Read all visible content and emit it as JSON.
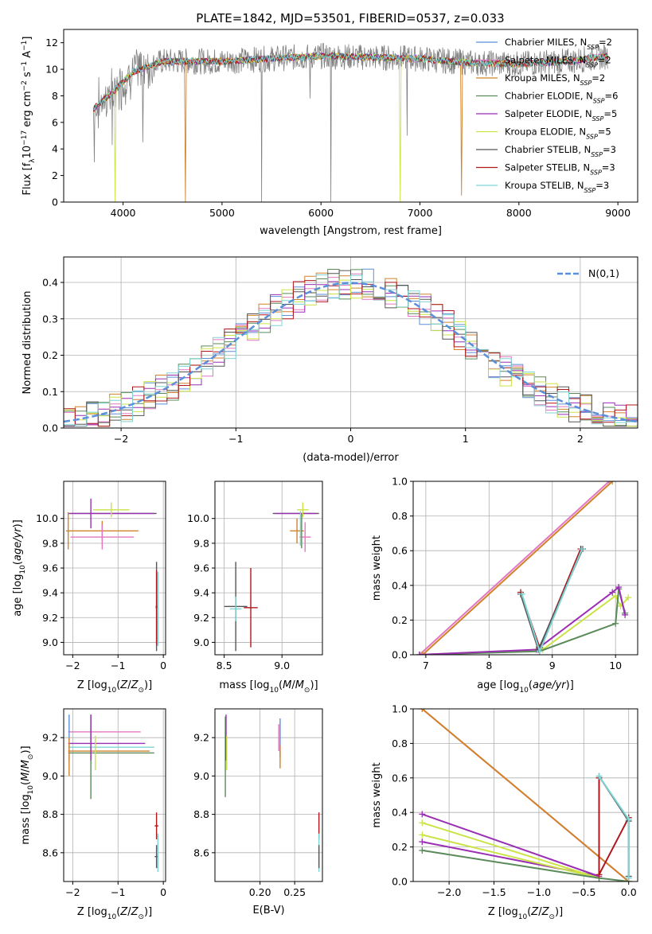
{
  "page": {
    "title": "PLATE=1842, MJD=53501, FIBERID=0537, z=0.033"
  },
  "legend_models": [
    {
      "name": "Chabrier MILES, N_SSP=2",
      "color": "#5b8fd9"
    },
    {
      "name": "Salpeter MILES, N_SSP=2",
      "color": "#e377c2"
    },
    {
      "name": "Kroupa MILES, N_SSP=2",
      "color": "#d2822a"
    },
    {
      "name": "Chabrier ELODIE, N_SSP=6",
      "color": "#5a8a5a"
    },
    {
      "name": "Salpeter ELODIE, N_SSP=5",
      "color": "#9a2fb3"
    },
    {
      "name": "Kroupa ELODIE, N_SSP=5",
      "color": "#cbe346"
    },
    {
      "name": "Chabrier STELIB, N_SSP=3",
      "color": "#555555"
    },
    {
      "name": "Salpeter STELIB, N_SSP=3",
      "color": "#b0171d"
    },
    {
      "name": "Kroupa STELIB, N_SSP=3",
      "color": "#7ed4d4"
    }
  ],
  "chart_data": [
    {
      "id": "spectrum",
      "type": "line",
      "title": "PLATE=1842, MJD=53501, FIBERID=0537, z=0.033",
      "xlabel": "wavelength [Angstrom, rest frame]",
      "ylabel": "Flux [f_λ 10^-17 erg cm^-2 s^-1 A^-1]",
      "xlim": [
        3400,
        9200
      ],
      "ylim": [
        0,
        13
      ],
      "xticks": [
        4000,
        5000,
        6000,
        7000,
        8000,
        9000
      ],
      "yticks": [
        0,
        2,
        4,
        6,
        8,
        10,
        12
      ],
      "data_color": "#808080",
      "data_x_range": [
        3700,
        8900
      ],
      "spikes_down": [
        {
          "x": 3710,
          "y": 3.0
        },
        {
          "x": 3890,
          "y": 4.3
        },
        {
          "x": 4200,
          "y": 4.5
        },
        {
          "x": 5400,
          "y": 0.0
        },
        {
          "x": 5890,
          "y": 7.8
        },
        {
          "x": 6100,
          "y": 0.0
        },
        {
          "x": 6870,
          "y": 5.0
        },
        {
          "x": 7600,
          "y": 10.5
        }
      ],
      "model_dropouts": [
        {
          "x": 3920,
          "y": 0.0,
          "model": "Kroupa ELODIE, N_SSP=5"
        },
        {
          "x": 4630,
          "y": 0.0,
          "model": "Kroupa MILES, N_SSP=2"
        },
        {
          "x": 6800,
          "y": 0.0,
          "model": "Kroupa ELODIE, N_SSP=5"
        },
        {
          "x": 7420,
          "y": 0.5,
          "model": "Kroupa MILES, N_SSP=2"
        }
      ],
      "continuum": [
        [
          3700,
          7.0
        ],
        [
          3900,
          8.3
        ],
        [
          4100,
          9.8
        ],
        [
          4400,
          10.6
        ],
        [
          5000,
          10.6
        ],
        [
          6000,
          11.0
        ],
        [
          7000,
          10.8
        ],
        [
          7500,
          10.5
        ],
        [
          8000,
          10.4
        ],
        [
          8500,
          10.6
        ],
        [
          8900,
          11.0
        ]
      ]
    },
    {
      "id": "residuals",
      "type": "line",
      "xlabel": "(data-model)/error",
      "ylabel": "Normed distribution",
      "xlim": [
        -2.5,
        2.5
      ],
      "ylim": [
        0,
        0.47
      ],
      "xticks": [
        -2,
        -1,
        0,
        1,
        2
      ],
      "yticks": [
        0.0,
        0.1,
        0.2,
        0.3,
        0.4
      ],
      "normal_curve_label": "N(0,1)",
      "normal_curve_color": "#5b8fd9",
      "step_bin_width": 0.1
    },
    {
      "id": "age_vs_metallicity",
      "type": "scatter",
      "xlabel": "Z [log10(Z/Z⊙)]",
      "ylabel": "age  [log10(age/yr)]",
      "xlim": [
        -2.2,
        0.05
      ],
      "ylim": [
        8.9,
        10.3
      ],
      "xticks": [
        -2,
        -1,
        0
      ],
      "yticks": [
        9.0,
        9.2,
        9.4,
        9.6,
        9.8,
        10.0
      ],
      "points": [
        {
          "x": -1.1,
          "y": 10.04,
          "xerr": 0.95,
          "yerr": 0.0,
          "color": "#555555"
        },
        {
          "x": -1.15,
          "y": 10.04,
          "xerr": 0.95,
          "yerr": 0.0,
          "color": "#9a2fb3"
        },
        {
          "x": -1.15,
          "y": 10.07,
          "xerr": 0.4,
          "yerr": 0.06,
          "color": "#cbe346"
        },
        {
          "x": -1.35,
          "y": 9.9,
          "xerr": 0.8,
          "yerr": 0.08,
          "color": "#d2822a"
        },
        {
          "x": -1.35,
          "y": 9.85,
          "xerr": 0.7,
          "yerr": 0.1,
          "color": "#e377c2"
        },
        {
          "x": -1.6,
          "y": 10.04,
          "xerr": 0.0,
          "yerr": 0.12,
          "color": "#9a2fb3"
        },
        {
          "x": -2.1,
          "y": 9.9,
          "xerr": 0.0,
          "yerr": 0.15,
          "color": "#d2822a"
        },
        {
          "x": -0.15,
          "y": 9.29,
          "xerr": 0.02,
          "yerr": 0.36,
          "color": "#555555"
        },
        {
          "x": -0.15,
          "y": 9.28,
          "xerr": 0.02,
          "yerr": 0.3,
          "color": "#b0171d"
        },
        {
          "x": -0.12,
          "y": 9.27,
          "xerr": 0.02,
          "yerr": 0.3,
          "color": "#7ed4d4"
        }
      ]
    },
    {
      "id": "age_vs_mass",
      "type": "scatter",
      "xlabel": "mass [log10(M/M⊙)]",
      "ylabel": "",
      "xlim": [
        8.42,
        9.35
      ],
      "ylim": [
        8.9,
        10.3
      ],
      "xticks": [
        8.5,
        9.0
      ],
      "yticks": [
        9.0,
        9.2,
        9.4,
        9.6,
        9.8,
        10.0
      ],
      "points": [
        {
          "x": 9.12,
          "y": 10.04,
          "xerr": 0.2,
          "yerr": 0.0,
          "color": "#555555"
        },
        {
          "x": 9.12,
          "y": 10.04,
          "xerr": 0.18,
          "yerr": 0.0,
          "color": "#9a2fb3"
        },
        {
          "x": 9.18,
          "y": 10.07,
          "xerr": 0.05,
          "yerr": 0.06,
          "color": "#cbe346"
        },
        {
          "x": 9.13,
          "y": 9.9,
          "xerr": 0.06,
          "yerr": 0.1,
          "color": "#d2822a"
        },
        {
          "x": 9.2,
          "y": 9.85,
          "xerr": 0.05,
          "yerr": 0.12,
          "color": "#e377c2"
        },
        {
          "x": 9.17,
          "y": 9.9,
          "xerr": 0.0,
          "yerr": 0.14,
          "color": "#5a8a5a"
        },
        {
          "x": 9.16,
          "y": 9.92,
          "xerr": 0.0,
          "yerr": 0.14,
          "color": "#7ed4d4"
        },
        {
          "x": 8.6,
          "y": 9.29,
          "xerr": 0.1,
          "yerr": 0.36,
          "color": "#555555"
        },
        {
          "x": 8.6,
          "y": 9.27,
          "xerr": 0.05,
          "yerr": 0.1,
          "color": "#7ed4d4"
        },
        {
          "x": 8.73,
          "y": 9.28,
          "xerr": 0.06,
          "yerr": 0.32,
          "color": "#b0171d"
        }
      ]
    },
    {
      "id": "mass_weight_vs_age",
      "type": "line",
      "xlabel": "age  [log10(age/yr)]",
      "ylabel": "mass weight",
      "xlim": [
        6.8,
        10.35
      ],
      "ylim": [
        0,
        1.0
      ],
      "xticks": [
        7,
        8,
        9,
        10
      ],
      "yticks": [
        0.0,
        0.2,
        0.4,
        0.6,
        0.8,
        1.0
      ],
      "series": [
        {
          "color": "#e377c2",
          "points": [
            [
              6.9,
              0.0
            ],
            [
              9.9,
              1.0
            ]
          ]
        },
        {
          "color": "#d2822a",
          "points": [
            [
              6.95,
              0.0
            ],
            [
              9.95,
              1.0
            ]
          ]
        },
        {
          "color": "#cbe346",
          "points": [
            [
              6.9,
              0.0
            ],
            [
              8.85,
              0.03
            ],
            [
              10.0,
              0.34
            ],
            [
              10.08,
              0.28
            ],
            [
              10.2,
              0.33
            ]
          ]
        },
        {
          "color": "#5a8a5a",
          "points": [
            [
              6.9,
              0.0
            ],
            [
              8.8,
              0.02
            ],
            [
              10.0,
              0.18
            ],
            [
              10.05,
              0.38
            ],
            [
              10.15,
              0.24
            ]
          ]
        },
        {
          "color": "#9a2fb3",
          "points": [
            [
              6.9,
              0.0
            ],
            [
              8.75,
              0.03
            ],
            [
              9.95,
              0.36
            ],
            [
              10.05,
              0.39
            ],
            [
              10.15,
              0.23
            ]
          ]
        },
        {
          "color": "#b0171d",
          "points": [
            [
              8.5,
              0.36
            ],
            [
              8.8,
              0.04
            ],
            [
              9.45,
              0.61
            ]
          ]
        },
        {
          "color": "#555555",
          "points": [
            [
              8.5,
              0.35
            ],
            [
              8.78,
              0.03
            ],
            [
              9.48,
              0.61
            ]
          ]
        },
        {
          "color": "#7ed4d4",
          "points": [
            [
              8.52,
              0.35
            ],
            [
              8.8,
              0.02
            ],
            [
              9.47,
              0.61
            ]
          ]
        }
      ]
    },
    {
      "id": "mass_vs_metallicity",
      "type": "scatter",
      "xlabel": "Z [log10(Z/Z⊙)]",
      "ylabel": "mass [log10(M/M⊙)]",
      "xlim": [
        -2.2,
        0.05
      ],
      "ylim": [
        8.45,
        9.35
      ],
      "xticks": [
        -2,
        -1,
        0
      ],
      "yticks": [
        8.6,
        8.8,
        9.0,
        9.2
      ],
      "points": [
        {
          "x": -1.3,
          "y": 9.23,
          "xerr": 0.8,
          "yerr": 0.0,
          "color": "#e377c2"
        },
        {
          "x": -1.25,
          "y": 9.17,
          "xerr": 0.85,
          "yerr": 0.0,
          "color": "#9a2fb3"
        },
        {
          "x": -1.15,
          "y": 9.15,
          "xerr": 0.95,
          "yerr": 0.0,
          "color": "#7ed4d4"
        },
        {
          "x": -1.2,
          "y": 9.13,
          "xerr": 0.9,
          "yerr": 0.0,
          "color": "#d2822a"
        },
        {
          "x": -1.15,
          "y": 9.12,
          "xerr": 0.95,
          "yerr": 0.0,
          "color": "#5a8a5a"
        },
        {
          "x": -1.5,
          "y": 9.12,
          "xerr": 0.0,
          "yerr": 0.09,
          "color": "#cbe346"
        },
        {
          "x": -1.6,
          "y": 9.1,
          "xerr": 0.0,
          "yerr": 0.22,
          "color": "#5a8a5a"
        },
        {
          "x": -1.6,
          "y": 9.2,
          "xerr": 0.0,
          "yerr": 0.12,
          "color": "#9a2fb3"
        },
        {
          "x": -2.08,
          "y": 9.2,
          "xerr": 0.0,
          "yerr": 0.12,
          "color": "#5b8fd9"
        },
        {
          "x": -2.08,
          "y": 9.1,
          "xerr": 0.0,
          "yerr": 0.1,
          "color": "#d2822a"
        },
        {
          "x": -0.15,
          "y": 8.74,
          "xerr": 0.04,
          "yerr": 0.07,
          "color": "#b0171d"
        },
        {
          "x": -0.15,
          "y": 8.58,
          "xerr": 0.04,
          "yerr": 0.06,
          "color": "#555555"
        },
        {
          "x": -0.12,
          "y": 8.6,
          "xerr": 0.02,
          "yerr": 0.1,
          "color": "#7ed4d4"
        }
      ]
    },
    {
      "id": "mass_vs_ebv",
      "type": "scatter",
      "xlabel": "E(B-V)",
      "ylabel": "",
      "xlim": [
        0.135,
        0.29
      ],
      "ylim": [
        8.45,
        9.35
      ],
      "xticks": [
        0.2,
        0.25
      ],
      "yticks": [
        8.6,
        8.8,
        9.0,
        9.2
      ],
      "points": [
        {
          "x": 0.15,
          "y": 9.1,
          "xerr": 0.0,
          "yerr": 0.21,
          "color": "#5a8a5a"
        },
        {
          "x": 0.151,
          "y": 9.2,
          "xerr": 0.0,
          "yerr": 0.12,
          "color": "#9a2fb3"
        },
        {
          "x": 0.152,
          "y": 9.12,
          "xerr": 0.0,
          "yerr": 0.09,
          "color": "#cbe346"
        },
        {
          "x": 0.227,
          "y": 9.2,
          "xerr": 0.0,
          "yerr": 0.07,
          "color": "#e377c2"
        },
        {
          "x": 0.229,
          "y": 9.2,
          "xerr": 0.0,
          "yerr": 0.1,
          "color": "#5b8fd9"
        },
        {
          "x": 0.229,
          "y": 9.1,
          "xerr": 0.0,
          "yerr": 0.06,
          "color": "#d2822a"
        },
        {
          "x": 0.285,
          "y": 8.74,
          "xerr": 0.0,
          "yerr": 0.07,
          "color": "#b0171d"
        },
        {
          "x": 0.285,
          "y": 8.6,
          "xerr": 0.0,
          "yerr": 0.1,
          "color": "#7ed4d4"
        },
        {
          "x": 0.285,
          "y": 8.58,
          "xerr": 0.0,
          "yerr": 0.06,
          "color": "#555555"
        }
      ]
    },
    {
      "id": "mass_weight_vs_metallicity",
      "type": "line",
      "xlabel": "Z [log10(Z/Z⊙)]",
      "ylabel": "mass weight",
      "xlim": [
        -2.4,
        0.1
      ],
      "ylim": [
        0,
        1.0
      ],
      "xticks": [
        -2.0,
        -1.5,
        -1.0,
        -0.5,
        0.0
      ],
      "yticks": [
        0.0,
        0.2,
        0.4,
        0.6,
        0.8,
        1.0
      ],
      "series": [
        {
          "color": "#e377c2",
          "points": [
            [
              -2.3,
              1.0
            ],
            [
              0.0,
              0.0
            ]
          ]
        },
        {
          "color": "#d2822a",
          "points": [
            [
              -2.3,
              1.0
            ],
            [
              0.0,
              0.0
            ]
          ]
        },
        {
          "color": "#9a2fb3",
          "points": [
            [
              -2.3,
              0.39
            ],
            [
              -0.33,
              0.03
            ],
            [
              -2.3,
              0.23
            ]
          ]
        },
        {
          "color": "#cbe346",
          "points": [
            [
              -2.3,
              0.27
            ],
            [
              -0.33,
              0.02
            ],
            [
              -2.3,
              0.34
            ]
          ]
        },
        {
          "color": "#5a8a5a",
          "points": [
            [
              -2.3,
              0.18
            ],
            [
              -0.33,
              0.02
            ],
            [
              0.0,
              0.0
            ]
          ]
        },
        {
          "color": "#b0171d",
          "points": [
            [
              -0.33,
              0.6
            ],
            [
              -0.33,
              0.04
            ],
            [
              0.0,
              0.37
            ]
          ]
        },
        {
          "color": "#555555",
          "points": [
            [
              -0.33,
              0.61
            ],
            [
              0.0,
              0.35
            ],
            [
              0.0,
              0.03
            ]
          ]
        },
        {
          "color": "#7ed4d4",
          "points": [
            [
              -0.33,
              0.61
            ],
            [
              0.0,
              0.36
            ],
            [
              0.0,
              0.02
            ]
          ]
        }
      ]
    }
  ]
}
